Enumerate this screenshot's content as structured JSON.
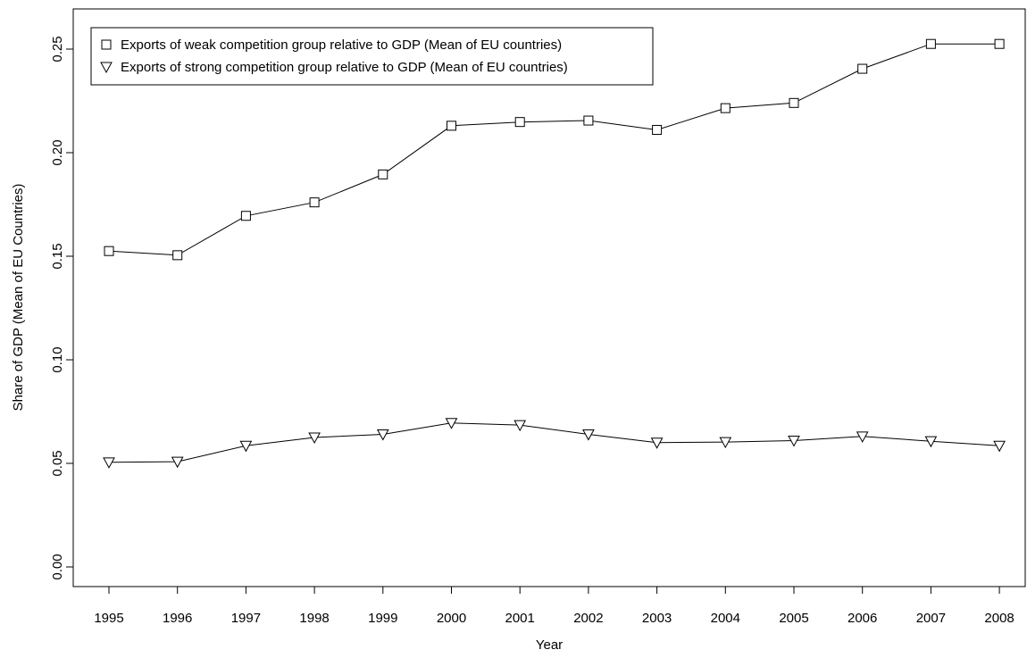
{
  "chart_data": {
    "type": "line",
    "xlabel": "Year",
    "ylabel": "Share of GDP (Mean of EU Countries)",
    "x": [
      1995,
      1996,
      1997,
      1998,
      1999,
      2000,
      2001,
      2002,
      2003,
      2004,
      2005,
      2006,
      2007,
      2008
    ],
    "ylim": [
      0.0,
      0.25
    ],
    "yticks": [
      "0.00",
      "0.05",
      "0.10",
      "0.15",
      "0.20",
      "0.25"
    ],
    "grid": false,
    "legend_position": "top-left",
    "series": [
      {
        "name": "Exports of weak competition group relative to GDP (Mean of EU countries)",
        "marker": "square",
        "values": [
          0.1525,
          0.1505,
          0.1695,
          0.176,
          0.1895,
          0.213,
          0.2148,
          0.2155,
          0.211,
          0.2215,
          0.224,
          0.2405,
          0.2525,
          0.2525
        ]
      },
      {
        "name": "Exports of strong competition group relative to GDP (Mean of EU countries)",
        "marker": "triangle-down",
        "values": [
          0.0505,
          0.0508,
          0.0585,
          0.0625,
          0.064,
          0.0695,
          0.0685,
          0.064,
          0.06,
          0.0603,
          0.061,
          0.063,
          0.0607,
          0.0585
        ]
      }
    ]
  }
}
